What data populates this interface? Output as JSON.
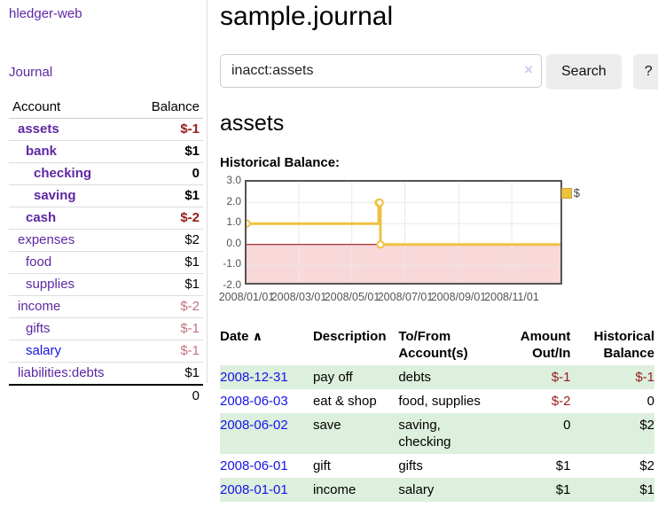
{
  "colors": {
    "link_purple": "#5d27a3",
    "link_blue": "#1414e8",
    "negative_strong": "#971c1c",
    "negative_pale": "#c1747e",
    "row_stripe_green": "#ddefdd",
    "chart_series_gold": "#edc240",
    "chart_negative_fill": "#f9d8da",
    "chart_zero_line": "#8b0000"
  },
  "sidebar": {
    "brand": "hledger-web",
    "journal_link": "Journal",
    "accounts_table": {
      "header_account": "Account",
      "header_balance": "Balance",
      "rows": [
        {
          "label": "assets",
          "balance": "$-1",
          "level": 1,
          "emphasis": true,
          "link_color": "purple",
          "balance_tone": "negative-strong"
        },
        {
          "label": "bank",
          "balance": "$1",
          "level": 2,
          "emphasis": true,
          "link_color": "purple",
          "balance_tone": "positive-strong"
        },
        {
          "label": "checking",
          "balance": "0",
          "level": 3,
          "emphasis": true,
          "link_color": "purple",
          "balance_tone": "positive-strong"
        },
        {
          "label": "saving",
          "balance": "$1",
          "level": 3,
          "emphasis": true,
          "link_color": "purple",
          "balance_tone": "positive-strong"
        },
        {
          "label": "cash",
          "balance": "$-2",
          "level": 2,
          "emphasis": true,
          "link_color": "purple",
          "balance_tone": "negative-strong"
        },
        {
          "label": "expenses",
          "balance": "$2",
          "level": 1,
          "emphasis": false,
          "link_color": "purple",
          "balance_tone": "positive"
        },
        {
          "label": "food",
          "balance": "$1",
          "level": 2,
          "emphasis": false,
          "link_color": "purple",
          "balance_tone": "positive"
        },
        {
          "label": "supplies",
          "balance": "$1",
          "level": 2,
          "emphasis": false,
          "link_color": "purple",
          "balance_tone": "positive"
        },
        {
          "label": "income",
          "balance": "$-2",
          "level": 1,
          "emphasis": false,
          "link_color": "purple",
          "balance_tone": "negative-pale"
        },
        {
          "label": "gifts",
          "balance": "$-1",
          "level": 2,
          "emphasis": false,
          "link_color": "purple",
          "balance_tone": "negative-pale"
        },
        {
          "label": "salary",
          "balance": "$-1",
          "level": 2,
          "emphasis": false,
          "link_color": "blue",
          "balance_tone": "negative-pale"
        },
        {
          "label": "liabilities:debts",
          "balance": "$1",
          "level": 1,
          "emphasis": false,
          "link_color": "purple",
          "balance_tone": "positive"
        }
      ],
      "total": "0"
    }
  },
  "main": {
    "title": "sample.journal",
    "search": {
      "value": "inacct:assets",
      "clear_icon": "×",
      "search_button": "Search",
      "help_button": "?"
    },
    "account_heading": "assets",
    "chart_title": "Historical Balance:"
  },
  "chart_data": {
    "type": "line",
    "step": true,
    "title": "Historical Balance",
    "series": [
      {
        "name": "$",
        "color": "#edc240",
        "x": [
          "2008-01-01",
          "2008-06-01",
          "2008-06-02",
          "2008-06-03",
          "2008-12-31"
        ],
        "values": [
          1.0,
          2.0,
          2.0,
          0.0,
          -1.0
        ]
      }
    ],
    "ylim": [
      -2.0,
      3.0
    ],
    "yticks": [
      3.0,
      2.0,
      1.0,
      0.0,
      -1.0,
      -2.0
    ],
    "ytick_labels": [
      "3.0",
      "2.0",
      "1.0",
      "0.0",
      "-1.0",
      "-2.0"
    ],
    "xticks": [
      {
        "label": "2008/01/01",
        "date": "2008-01-01"
      },
      {
        "label": "2008/03/01",
        "date": "2008-03-01"
      },
      {
        "label": "2008/05/01",
        "date": "2008-05-01"
      },
      {
        "label": "2008/07/01",
        "date": "2008-07-01"
      },
      {
        "label": "2008/09/01",
        "date": "2008-09-01"
      },
      {
        "label": "2008/11/01",
        "date": "2008-11-01"
      }
    ],
    "xrange": [
      "2008-01-01",
      "2008-12-31"
    ],
    "grid": true,
    "legend": {
      "label": "$",
      "position": "top-right"
    },
    "negative_region_fill": "#f9d8da",
    "zero_line_color": "#8b0000"
  },
  "register": {
    "headers": {
      "date": "Date",
      "sort_icon": "∧",
      "description": "Description",
      "accounts": "To/From Account(s)",
      "amount": "Amount Out/In",
      "balance": "Historical Balance"
    },
    "rows": [
      {
        "date": "2008-12-31",
        "description": "pay off",
        "accounts": "debts",
        "amount": "$-1",
        "amount_negative": true,
        "balance": "$-1",
        "balance_negative": true
      },
      {
        "date": "2008-06-03",
        "description": "eat & shop",
        "accounts": "food, supplies",
        "amount": "$-2",
        "amount_negative": true,
        "balance": "0",
        "balance_negative": false
      },
      {
        "date": "2008-06-02",
        "description": "save",
        "accounts": "saving, checking",
        "amount": "0",
        "amount_negative": false,
        "balance": "$2",
        "balance_negative": false
      },
      {
        "date": "2008-06-01",
        "description": "gift",
        "accounts": "gifts",
        "amount": "$1",
        "amount_negative": false,
        "balance": "$2",
        "balance_negative": false
      },
      {
        "date": "2008-01-01",
        "description": "income",
        "accounts": "salary",
        "amount": "$1",
        "amount_negative": false,
        "balance": "$1",
        "balance_negative": false
      }
    ]
  }
}
